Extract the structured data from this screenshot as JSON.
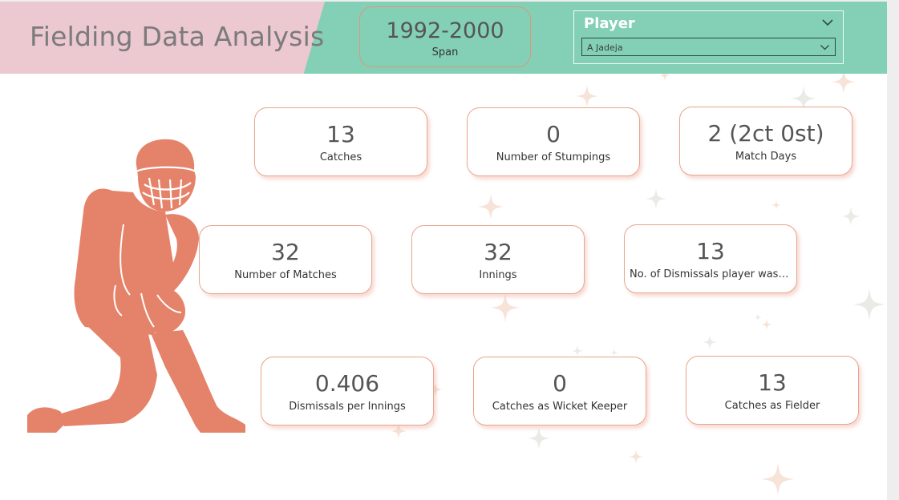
{
  "header": {
    "title": "Fielding Data Analysis",
    "span": {
      "value": "1992-2000",
      "label": "Span"
    },
    "slicer": {
      "title": "Player",
      "selected": "A Jadeja"
    }
  },
  "cards": [
    {
      "value": "13",
      "label": "Catches"
    },
    {
      "value": "0",
      "label": "Number of Stumpings"
    },
    {
      "value": "2 (2ct 0st)",
      "label": "Match Days"
    },
    {
      "value": "32",
      "label": "Number of Matches"
    },
    {
      "value": "32",
      "label": "Innings"
    },
    {
      "value": "13",
      "label": "No. of Dismissals player was i..."
    },
    {
      "value": "0.406",
      "label": "Dismissals per Innings"
    },
    {
      "value": "0",
      "label": "Catches as Wicket Keeper"
    },
    {
      "value": "13",
      "label": "Catches as Fielder"
    }
  ],
  "icons": {
    "slicer_chevron": "chevron-down-icon",
    "dropdown_chevron": "chevron-down-icon",
    "figure": "wicket-keeper-silhouette",
    "stars": "sparkle-stars-decoration"
  },
  "colors": {
    "header_pink": "#ecc8d0",
    "header_teal": "#83d0b6",
    "accent_salmon": "#e5826a",
    "card_border": "#e8a58d",
    "text_dark": "#555555"
  }
}
